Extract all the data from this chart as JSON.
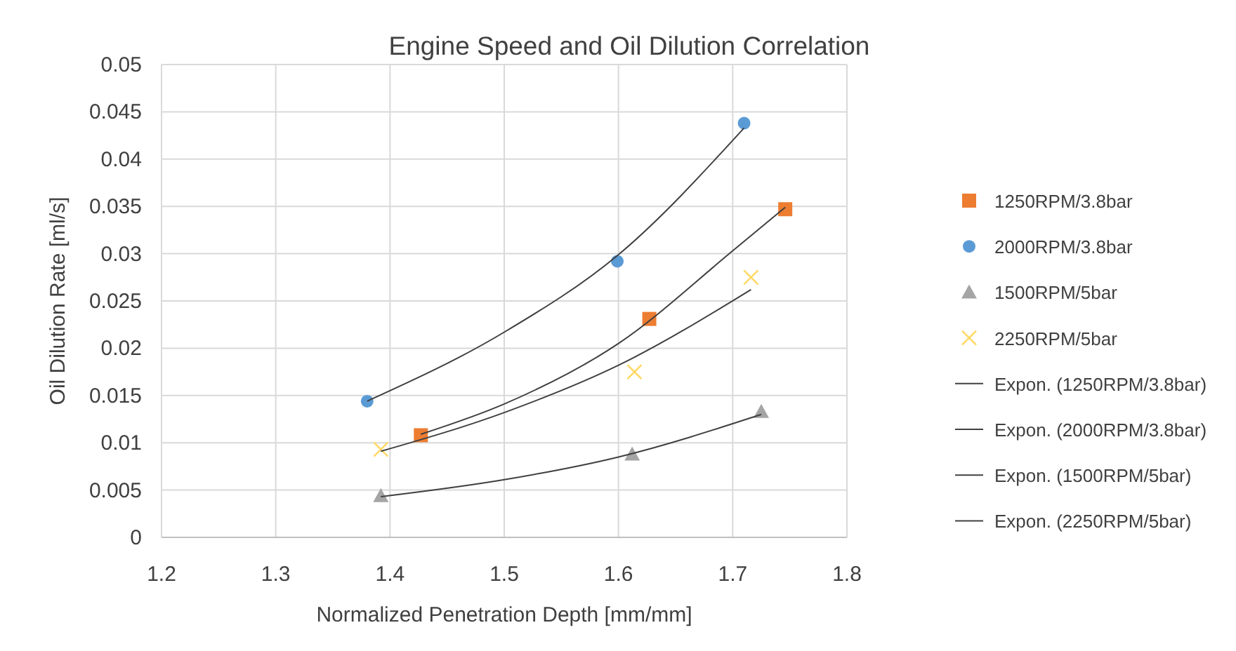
{
  "chart_data": {
    "type": "scatter",
    "title": "Engine Speed and Oil Dilution Correlation",
    "xlabel": "Normalized Penetration Depth [mm/mm]",
    "ylabel": "Oil Dilution Rate [ml/s]",
    "xlim": [
      1.2,
      1.8
    ],
    "xticks": [
      1.2,
      1.3,
      1.4,
      1.5,
      1.6,
      1.7,
      1.8
    ],
    "ylim": [
      0,
      0.05
    ],
    "yticks": [
      0,
      0.005,
      0.01,
      0.015,
      0.02,
      0.025,
      0.03,
      0.035,
      0.04,
      0.045,
      0.05
    ],
    "grid": true,
    "legend": "right",
    "series": [
      {
        "name": "1250RPM/3.8bar",
        "color": "#ed7d31",
        "marker": "square",
        "x": [
          1.427,
          1.627,
          1.746
        ],
        "values": [
          0.0108,
          0.0231,
          0.0347
        ]
      },
      {
        "name": "2000RPM/3.8bar",
        "color": "#5b9bd5",
        "marker": "circle",
        "x": [
          1.38,
          1.599,
          1.71
        ],
        "values": [
          0.0144,
          0.0292,
          0.0438
        ]
      },
      {
        "name": "1500RPM/5bar",
        "color": "#a5a5a5",
        "marker": "triangle",
        "x": [
          1.392,
          1.612,
          1.725
        ],
        "values": [
          0.0044,
          0.0088,
          0.0133
        ]
      },
      {
        "name": "2250RPM/5bar",
        "color": "#ffd966",
        "marker": "cross",
        "x": [
          1.392,
          1.614,
          1.716
        ],
        "values": [
          0.0093,
          0.0175,
          0.0275
        ]
      },
      {
        "name": "Expon. (1250RPM/3.8bar)",
        "type": "line",
        "color": "#404040",
        "marker": "none",
        "x": [
          1.427,
          1.5,
          1.6,
          1.7,
          1.746
        ],
        "values": [
          0.0109,
          0.0141,
          0.0205,
          0.0303,
          0.0349
        ]
      },
      {
        "name": "Expon. (2000RPM/3.8bar)",
        "type": "line",
        "color": "#404040",
        "marker": "none",
        "x": [
          1.38,
          1.5,
          1.6,
          1.71
        ],
        "values": [
          0.0144,
          0.0217,
          0.0299,
          0.0433
        ]
      },
      {
        "name": "Expon. (1500RPM/5bar)",
        "type": "line",
        "color": "#404040",
        "marker": "none",
        "x": [
          1.392,
          1.5,
          1.6,
          1.725
        ],
        "values": [
          0.0043,
          0.0061,
          0.0085,
          0.013
        ]
      },
      {
        "name": "Expon. (2250RPM/5bar)",
        "type": "line",
        "color": "#404040",
        "marker": "none",
        "x": [
          1.392,
          1.5,
          1.6,
          1.716
        ],
        "values": [
          0.0091,
          0.0132,
          0.0182,
          0.0262
        ]
      }
    ]
  }
}
